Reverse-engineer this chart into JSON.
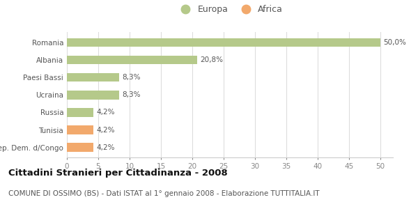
{
  "categories": [
    "Rep. Dem. d/Congo",
    "Tunisia",
    "Russia",
    "Ucraina",
    "Paesi Bassi",
    "Albania",
    "Romania"
  ],
  "values": [
    4.2,
    4.2,
    4.2,
    8.3,
    8.3,
    20.8,
    50.0
  ],
  "labels": [
    "4,2%",
    "4,2%",
    "4,2%",
    "8,3%",
    "8,3%",
    "20,8%",
    "50,0%"
  ],
  "colors": [
    "#f2a96c",
    "#f2a96c",
    "#b5c98a",
    "#b5c98a",
    "#b5c98a",
    "#b5c98a",
    "#b5c98a"
  ],
  "legend_items": [
    {
      "label": "Europa",
      "color": "#b5c98a"
    },
    {
      "label": "Africa",
      "color": "#f2a96c"
    }
  ],
  "xlim": [
    0,
    52
  ],
  "xticks": [
    0,
    5,
    10,
    15,
    20,
    25,
    30,
    35,
    40,
    45,
    50
  ],
  "title": "Cittadini Stranieri per Cittadinanza - 2008",
  "subtitle": "COMUNE DI OSSIMO (BS) - Dati ISTAT al 1° gennaio 2008 - Elaborazione TUTTITALIA.IT",
  "background_color": "#ffffff",
  "bar_height": 0.5,
  "label_fontsize": 7.5,
  "title_fontsize": 9.5,
  "subtitle_fontsize": 7.5,
  "tick_fontsize": 7.5
}
